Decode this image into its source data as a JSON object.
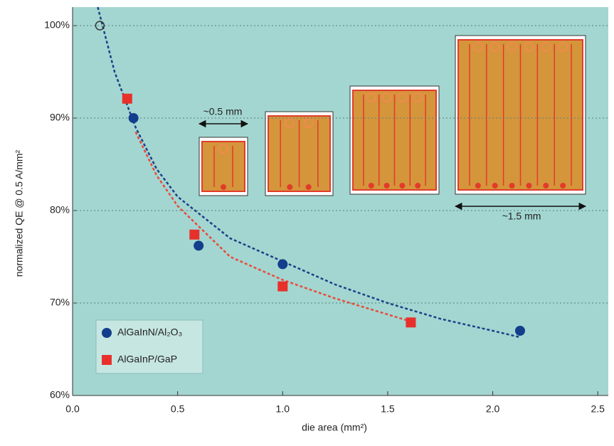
{
  "chart_data": {
    "type": "scatter",
    "x_label": "die area (mm²)",
    "y_label": "normalized QE @ 0.5 A/mm²",
    "xlim": [
      0,
      2.55
    ],
    "ylim": [
      60,
      102
    ],
    "xticks": [
      {
        "value": 0,
        "label": "0.0"
      },
      0.5,
      {
        "value": 1,
        "label": "1.0"
      },
      1.5,
      {
        "value": 2,
        "label": "2.0"
      },
      2.5
    ],
    "yticks": [
      {
        "value": 60,
        "label": "60%"
      },
      {
        "value": 70,
        "label": "70%"
      },
      {
        "value": 80,
        "label": "80%"
      },
      {
        "value": 90,
        "label": "90%"
      },
      {
        "value": 100,
        "label": "100%"
      }
    ],
    "grid": true,
    "series": [
      {
        "name": "AlGaInN/Al₂O₃",
        "color": "#123e8c",
        "marker": "circle",
        "x": [
          0.29,
          0.6,
          1.0,
          2.13
        ],
        "values": [
          90,
          76.2,
          74.2,
          67
        ]
      },
      {
        "name": "AlGaInP/GaP",
        "color": "#e8302a",
        "marker": "square",
        "x": [
          0.26,
          0.58,
          1.0,
          1.61
        ],
        "values": [
          92.1,
          77.4,
          71.8,
          67.9
        ]
      }
    ],
    "reference_point": {
      "x": 0.13,
      "y": 100,
      "color": "#333333"
    },
    "fits": [
      {
        "color": "#1f3f88",
        "x": [
          0.12,
          0.2,
          0.3,
          0.4,
          0.5,
          0.75,
          1.0,
          1.25,
          1.5,
          1.75,
          2.0,
          2.13
        ],
        "values": [
          102,
          95,
          89,
          84.5,
          81.5,
          77,
          74.5,
          72,
          70,
          68.3,
          67,
          66.3
        ]
      },
      {
        "color": "#e84a3a",
        "x": [
          0.3,
          0.4,
          0.5,
          0.75,
          1.0,
          1.25,
          1.61
        ],
        "values": [
          88.5,
          83.8,
          80.5,
          75,
          72.5,
          70.5,
          68
        ]
      }
    ],
    "annotations": [
      "~0.5 mm",
      "~1.5 mm"
    ]
  }
}
